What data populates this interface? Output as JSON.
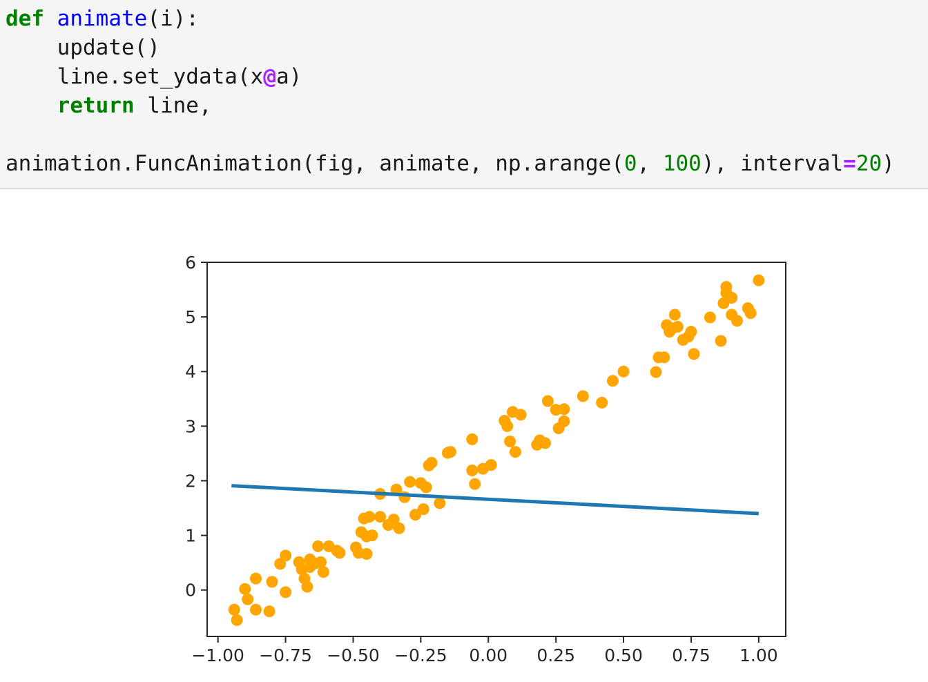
{
  "code": {
    "kw_def": "def",
    "fn_name": "animate",
    "params": "(i):",
    "line_update": "update()",
    "line_set_pre": "line.set_ydata(x",
    "op_at": "@",
    "line_set_post": "a)",
    "kw_return": "return",
    "return_rest": " line,",
    "anim_pre": "animation.FuncAnimation(fig, animate, np.arange(",
    "anim_n0": "0",
    "anim_sep": ", ",
    "anim_n100": "100",
    "anim_mid": "), interval",
    "anim_eq": "=",
    "anim_n20": "20",
    "anim_close": ")"
  },
  "colors": {
    "scatter": "#ffa500",
    "line": "#1f77b4",
    "keyword": "#008000",
    "function": "#0000ff",
    "operator": "#aa22ff"
  },
  "chart_data": {
    "type": "scatter",
    "xlim": [
      -1.04,
      1.1
    ],
    "ylim": [
      -0.85,
      6.0
    ],
    "xticks": [
      -1.0,
      -0.75,
      -0.5,
      -0.25,
      0.0,
      0.25,
      0.5,
      0.75,
      1.0
    ],
    "xtick_labels": [
      "−1.00",
      "−0.75",
      "−0.50",
      "−0.25",
      "0.00",
      "0.25",
      "0.50",
      "0.75",
      "1.00"
    ],
    "yticks": [
      0,
      1,
      2,
      3,
      4,
      5,
      6
    ],
    "ytick_labels": [
      "0",
      "1",
      "2",
      "3",
      "4",
      "5",
      "6"
    ],
    "grid": false,
    "points": [
      [
        -0.94,
        -0.36
      ],
      [
        -0.93,
        -0.55
      ],
      [
        -0.9,
        0.02
      ],
      [
        -0.89,
        -0.17
      ],
      [
        -0.86,
        -0.36
      ],
      [
        -0.86,
        0.21
      ],
      [
        -0.81,
        -0.39
      ],
      [
        -0.8,
        0.15
      ],
      [
        -0.77,
        0.48
      ],
      [
        -0.75,
        0.63
      ],
      [
        -0.75,
        -0.04
      ],
      [
        -0.7,
        0.51
      ],
      [
        -0.69,
        0.38
      ],
      [
        -0.68,
        0.21
      ],
      [
        -0.67,
        0.06
      ],
      [
        -0.66,
        0.56
      ],
      [
        -0.66,
        0.42
      ],
      [
        -0.64,
        0.49
      ],
      [
        -0.63,
        0.8
      ],
      [
        -0.62,
        0.51
      ],
      [
        -0.61,
        0.33
      ],
      [
        -0.59,
        0.8
      ],
      [
        -0.56,
        0.72
      ],
      [
        -0.55,
        0.68
      ],
      [
        -0.49,
        0.78
      ],
      [
        -0.48,
        0.68
      ],
      [
        -0.47,
        1.06
      ],
      [
        -0.46,
        1.31
      ],
      [
        -0.45,
        0.66
      ],
      [
        -0.45,
        0.98
      ],
      [
        -0.44,
        1.34
      ],
      [
        -0.43,
        1.0
      ],
      [
        -0.4,
        1.34
      ],
      [
        -0.4,
        1.76
      ],
      [
        -0.37,
        1.19
      ],
      [
        -0.35,
        1.29
      ],
      [
        -0.34,
        1.84
      ],
      [
        -0.33,
        1.13
      ],
      [
        -0.31,
        1.7
      ],
      [
        -0.29,
        1.98
      ],
      [
        -0.27,
        1.38
      ],
      [
        -0.25,
        1.96
      ],
      [
        -0.24,
        1.48
      ],
      [
        -0.23,
        1.88
      ],
      [
        -0.22,
        2.28
      ],
      [
        -0.21,
        2.33
      ],
      [
        -0.18,
        1.59
      ],
      [
        -0.15,
        2.51
      ],
      [
        -0.14,
        2.53
      ],
      [
        -0.06,
        2.19
      ],
      [
        -0.06,
        2.76
      ],
      [
        -0.05,
        1.94
      ],
      [
        -0.02,
        2.22
      ],
      [
        0.01,
        2.29
      ],
      [
        0.06,
        3.1
      ],
      [
        0.07,
        3.0
      ],
      [
        0.08,
        2.72
      ],
      [
        0.09,
        3.26
      ],
      [
        0.1,
        2.53
      ],
      [
        0.12,
        3.21
      ],
      [
        0.18,
        2.66
      ],
      [
        0.19,
        2.74
      ],
      [
        0.21,
        2.69
      ],
      [
        0.22,
        3.46
      ],
      [
        0.25,
        3.3
      ],
      [
        0.26,
        2.96
      ],
      [
        0.28,
        3.09
      ],
      [
        0.28,
        3.31
      ],
      [
        0.35,
        3.55
      ],
      [
        0.42,
        3.43
      ],
      [
        0.46,
        3.83
      ],
      [
        0.5,
        4.0
      ],
      [
        0.62,
        3.99
      ],
      [
        0.63,
        4.26
      ],
      [
        0.65,
        4.26
      ],
      [
        0.66,
        4.85
      ],
      [
        0.67,
        4.73
      ],
      [
        0.68,
        4.79
      ],
      [
        0.69,
        5.04
      ],
      [
        0.7,
        4.82
      ],
      [
        0.72,
        4.58
      ],
      [
        0.74,
        4.64
      ],
      [
        0.75,
        4.73
      ],
      [
        0.76,
        4.32
      ],
      [
        0.82,
        4.99
      ],
      [
        0.86,
        4.56
      ],
      [
        0.87,
        5.25
      ],
      [
        0.88,
        5.44
      ],
      [
        0.88,
        5.55
      ],
      [
        0.9,
        5.35
      ],
      [
        0.9,
        5.04
      ],
      [
        0.92,
        4.93
      ],
      [
        0.96,
        5.16
      ],
      [
        0.97,
        5.07
      ],
      [
        1.0,
        5.67
      ]
    ],
    "line_x": [
      -0.95,
      1.0
    ],
    "line_y": [
      1.91,
      1.4
    ]
  }
}
